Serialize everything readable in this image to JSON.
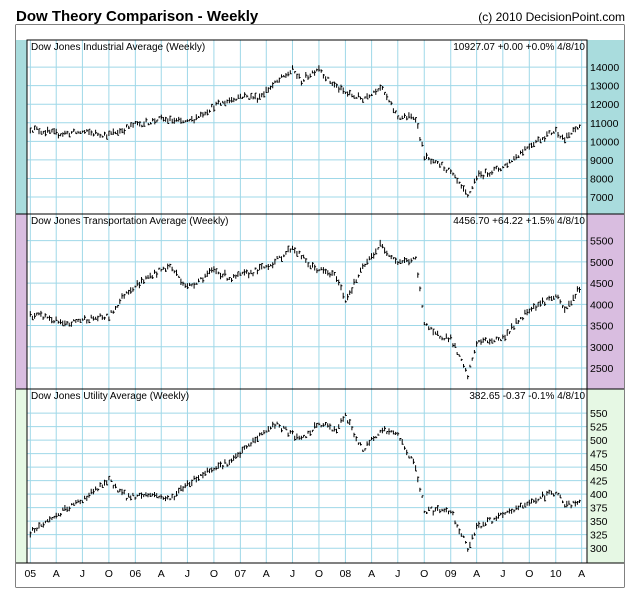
{
  "header": {
    "title": "Dow Theory Comparison - Weekly",
    "copyright": "(c) 2010 DecisionPoint.com"
  },
  "colors": {
    "panel_background": [
      "#a9dcdd",
      "#d9bde0",
      "#e6f8e4"
    ],
    "grid": "#9fd8e8",
    "bars": "#000000"
  },
  "x_axis": {
    "tick_labels": [
      "05",
      "A",
      "J",
      "O",
      "06",
      "A",
      "J",
      "O",
      "07",
      "A",
      "J",
      "O",
      "08",
      "A",
      "J",
      "O",
      "09",
      "A",
      "J",
      "O",
      "10",
      "A"
    ],
    "dates": [
      "2005-01",
      "2005-04",
      "2005-07",
      "2005-10",
      "2006-01",
      "2006-04",
      "2006-07",
      "2006-10",
      "2007-01",
      "2007-04",
      "2007-07",
      "2007-10",
      "2008-01",
      "2008-04",
      "2008-07",
      "2008-10",
      "2009-01",
      "2009-04",
      "2009-07",
      "2009-10",
      "2010-01",
      "2010-04"
    ],
    "end_date": "2010-04-08"
  },
  "chart_data": [
    {
      "type": "line",
      "style": "ohlc-weekly-bars",
      "title": "Dow Jones Industrial Average (Weekly)",
      "last_value": "10927.07",
      "change": "+0.00",
      "change_pct": "+0.0%",
      "date": "4/8/10",
      "ylim": [
        6300,
        14600
      ],
      "yticks": [
        7000,
        8000,
        9000,
        10000,
        11000,
        12000,
        13000,
        14000
      ],
      "x": [
        "2005-01",
        "2005-04",
        "2005-07",
        "2005-10",
        "2006-01",
        "2006-04",
        "2006-07",
        "2006-10",
        "2007-01",
        "2007-03",
        "2007-05",
        "2007-07",
        "2007-08",
        "2007-10",
        "2007-11",
        "2008-01",
        "2008-03",
        "2008-05",
        "2008-07",
        "2008-09",
        "2008-10",
        "2008-11",
        "2008-12",
        "2009-01",
        "2009-03",
        "2009-04",
        "2009-07",
        "2009-10",
        "2010-01",
        "2010-02",
        "2010-04"
      ],
      "values": [
        10700,
        10400,
        10500,
        10350,
        10900,
        11200,
        11000,
        11900,
        12450,
        12350,
        13100,
        13850,
        13250,
        14000,
        13300,
        12600,
        12300,
        12950,
        11300,
        11300,
        9200,
        8800,
        8700,
        8300,
        7000,
        8100,
        8600,
        9800,
        10600,
        10100,
        10927
      ]
    },
    {
      "type": "line",
      "style": "ohlc-weekly-bars",
      "title": "Dow Jones Transportation Average (Weekly)",
      "last_value": "4456.70",
      "change": "+64.22",
      "change_pct": "+1.5%",
      "date": "4/8/10",
      "ylim": [
        2100,
        5750
      ],
      "yticks": [
        2500,
        3000,
        3500,
        4000,
        4500,
        5000,
        5500
      ],
      "x": [
        "2005-01",
        "2005-03",
        "2005-05",
        "2005-07",
        "2005-10",
        "2005-12",
        "2006-03",
        "2006-05",
        "2006-07",
        "2006-10",
        "2006-12",
        "2007-03",
        "2007-05",
        "2007-07",
        "2007-09",
        "2007-12",
        "2008-01",
        "2008-03",
        "2008-05",
        "2008-07",
        "2008-09",
        "2008-10",
        "2008-11",
        "2009-01",
        "2009-03",
        "2009-04",
        "2009-07",
        "2009-10",
        "2010-01",
        "2010-02",
        "2010-04"
      ],
      "values": [
        3750,
        3700,
        3500,
        3650,
        3700,
        4300,
        4700,
        4900,
        4400,
        4800,
        4600,
        4800,
        5000,
        5350,
        4900,
        4650,
        4100,
        4850,
        5400,
        5000,
        5050,
        3600,
        3300,
        3200,
        2300,
        3100,
        3200,
        3900,
        4200,
        3850,
        4456
      ]
    },
    {
      "type": "line",
      "style": "ohlc-weekly-bars",
      "title": "Dow Jones Utility Average (Weekly)",
      "last_value": "382.65",
      "change": "-0.37",
      "change_pct": "-0.1%",
      "date": "4/8/10",
      "ylim": [
        280,
        565
      ],
      "yticks": [
        300,
        325,
        350,
        375,
        400,
        425,
        450,
        475,
        500,
        525,
        550
      ],
      "x": [
        "2005-01",
        "2005-04",
        "2005-07",
        "2005-10",
        "2005-12",
        "2006-03",
        "2006-05",
        "2006-07",
        "2006-10",
        "2006-12",
        "2007-03",
        "2007-05",
        "2007-07",
        "2007-08",
        "2007-10",
        "2007-12",
        "2008-01",
        "2008-03",
        "2008-05",
        "2008-07",
        "2008-09",
        "2008-10",
        "2008-11",
        "2009-01",
        "2009-03",
        "2009-04",
        "2009-07",
        "2009-10",
        "2010-01",
        "2010-02",
        "2010-04"
      ],
      "values": [
        330,
        360,
        390,
        425,
        395,
        400,
        390,
        420,
        450,
        460,
        505,
        530,
        510,
        500,
        530,
        520,
        545,
        480,
        520,
        510,
        450,
        370,
        370,
        370,
        300,
        340,
        360,
        385,
        405,
        380,
        383
      ]
    }
  ]
}
